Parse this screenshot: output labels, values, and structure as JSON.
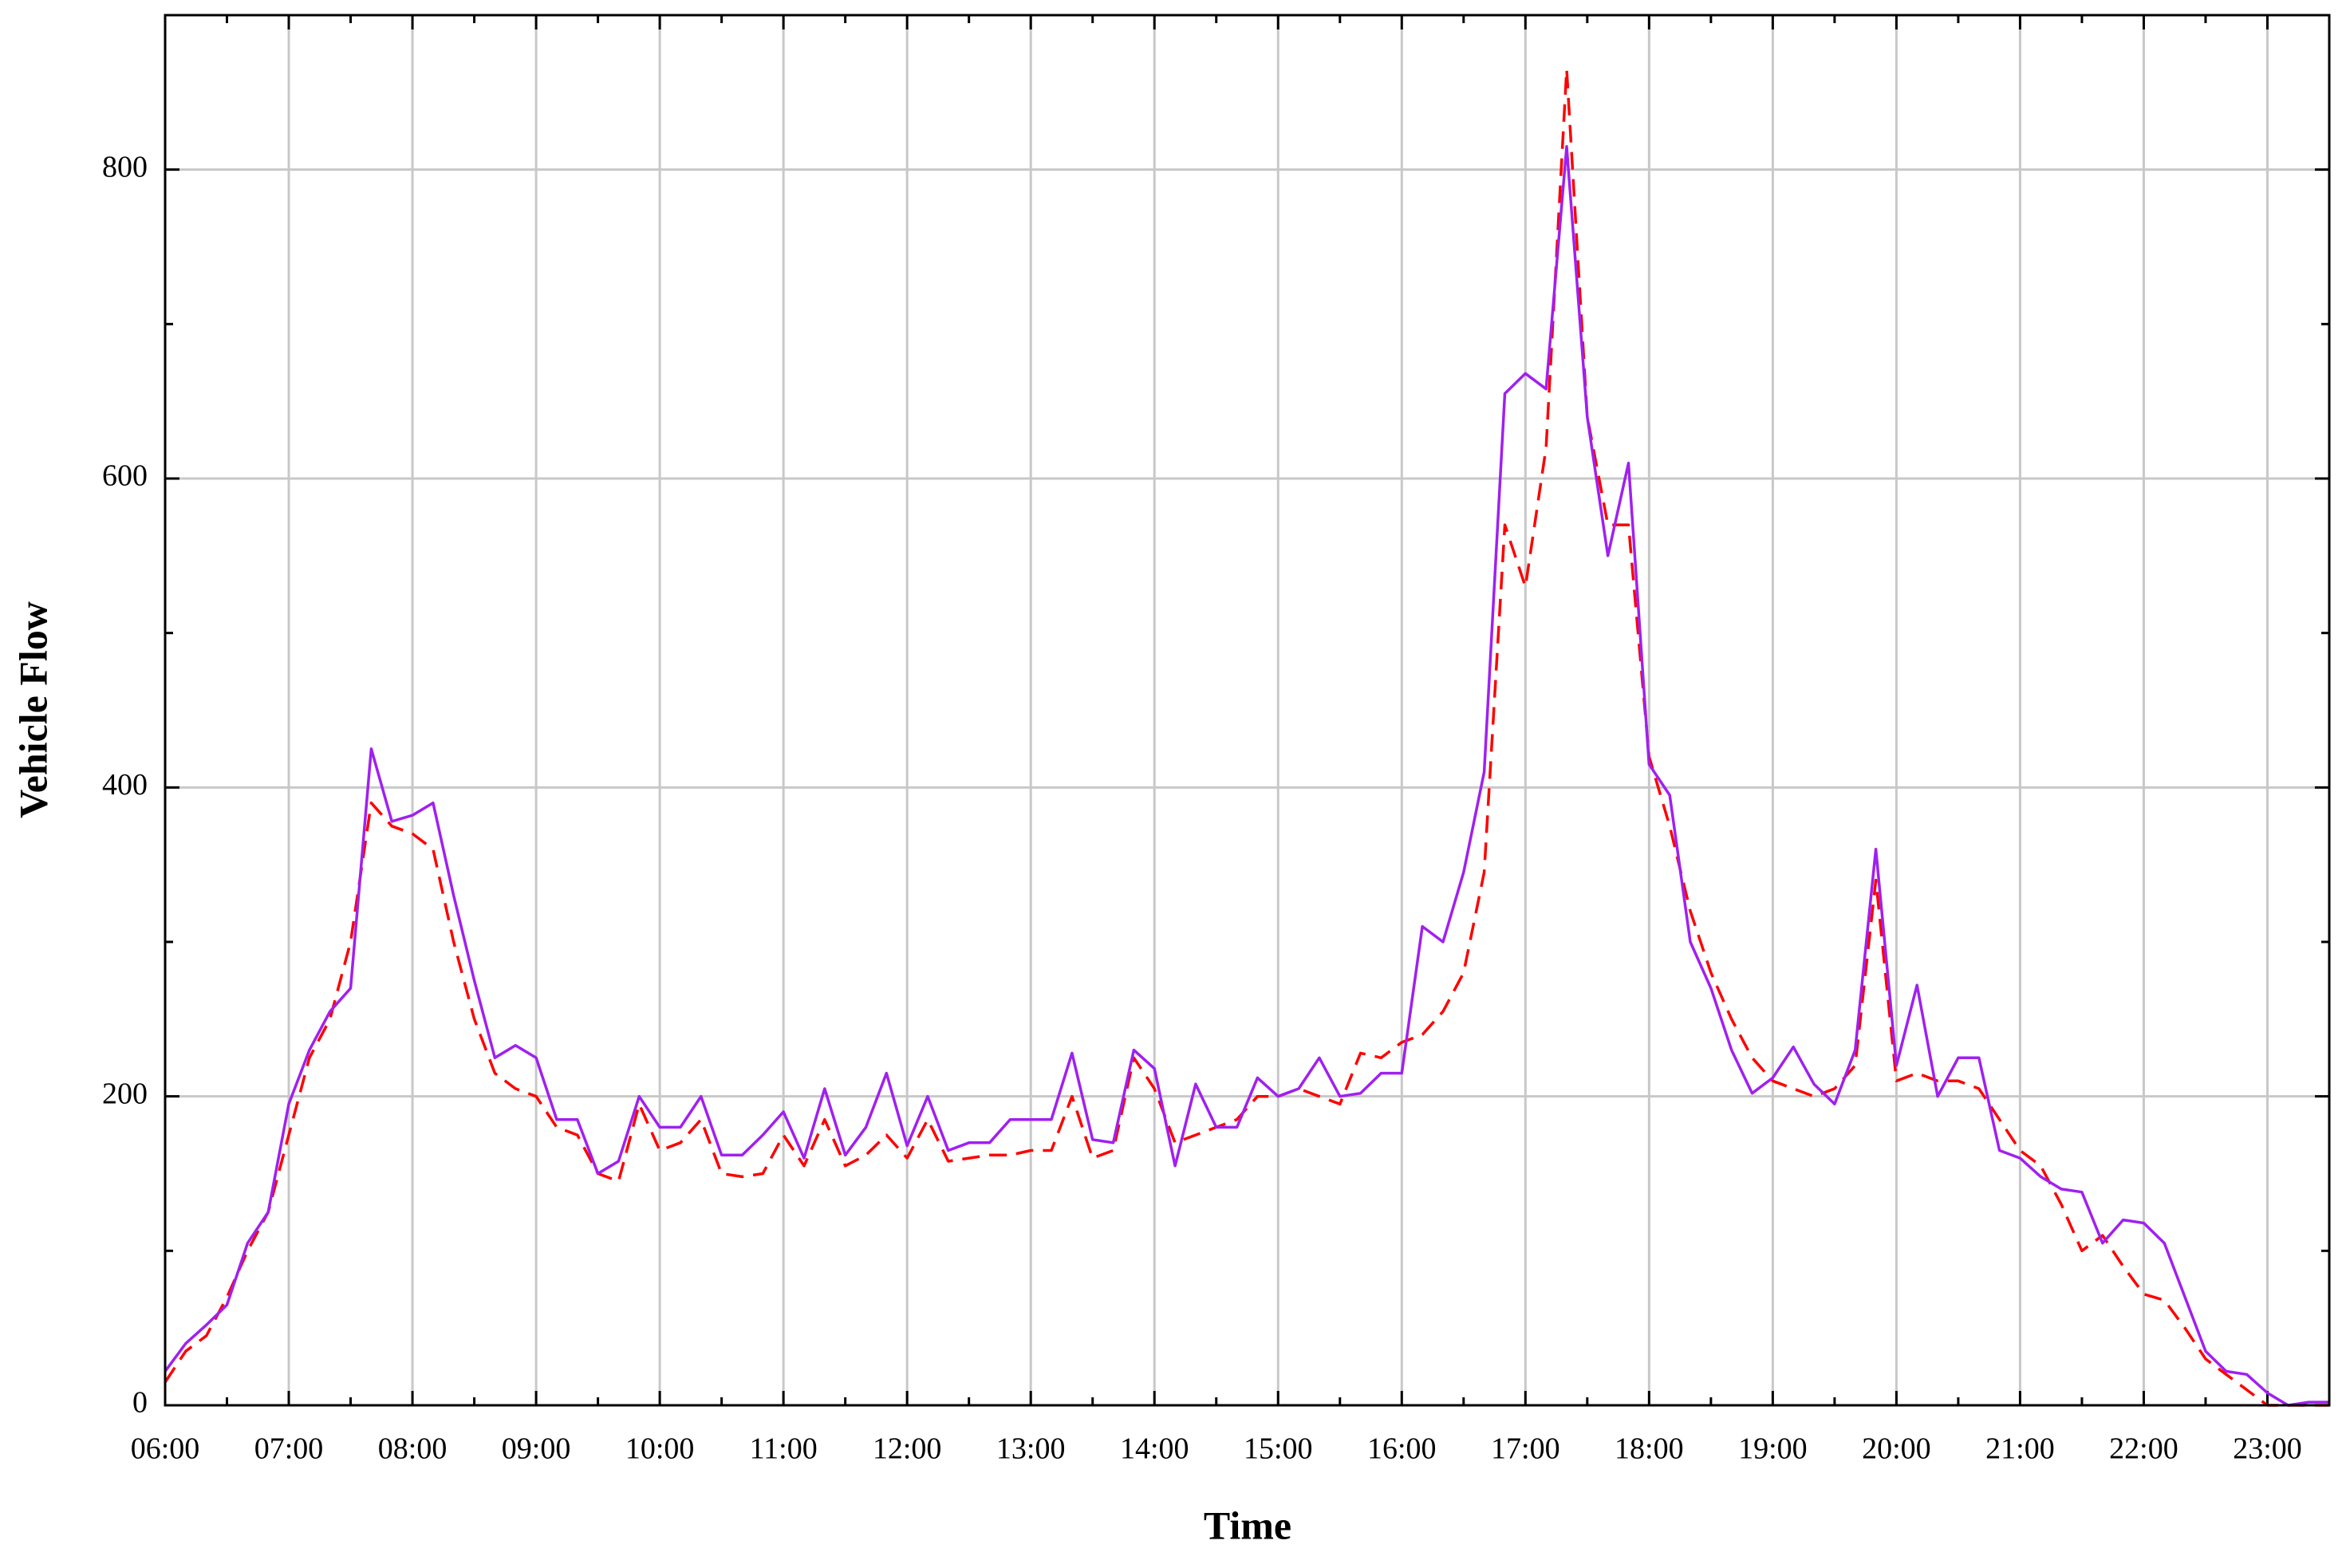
{
  "chart_data": {
    "type": "line",
    "x_label": "Time",
    "y_label": "Vehicle Flow",
    "x": [
      "06:00",
      "06:10",
      "06:20",
      "06:30",
      "06:40",
      "06:50",
      "07:00",
      "07:10",
      "07:20",
      "07:30",
      "07:40",
      "07:50",
      "08:00",
      "08:10",
      "08:20",
      "08:30",
      "08:40",
      "08:50",
      "09:00",
      "09:10",
      "09:20",
      "09:30",
      "09:40",
      "09:50",
      "10:00",
      "10:10",
      "10:20",
      "10:30",
      "10:40",
      "10:50",
      "11:00",
      "11:10",
      "11:20",
      "11:30",
      "11:40",
      "11:50",
      "12:00",
      "12:10",
      "12:20",
      "12:30",
      "12:40",
      "12:50",
      "13:00",
      "13:10",
      "13:20",
      "13:30",
      "13:40",
      "13:50",
      "14:00",
      "14:10",
      "14:20",
      "14:30",
      "14:40",
      "14:50",
      "15:00",
      "15:10",
      "15:20",
      "15:30",
      "15:40",
      "15:50",
      "16:00",
      "16:10",
      "16:20",
      "16:30",
      "16:40",
      "16:50",
      "17:00",
      "17:10",
      "17:20",
      "17:30",
      "17:40",
      "17:50",
      "18:00",
      "18:10",
      "18:20",
      "18:30",
      "18:40",
      "18:50",
      "19:00",
      "19:10",
      "19:20",
      "19:30",
      "19:40",
      "19:50",
      "20:00",
      "20:10",
      "20:20",
      "20:30",
      "20:40",
      "20:50",
      "21:00",
      "21:10",
      "21:20",
      "21:30",
      "21:40",
      "21:50",
      "22:00",
      "22:10",
      "22:20",
      "22:30",
      "22:40",
      "22:50",
      "23:00",
      "23:10",
      "23:20",
      "23:30"
    ],
    "series": [
      {
        "color": "#a020f0",
        "linestyle": "solid",
        "values": [
          22,
          40,
          52,
          65,
          105,
          125,
          195,
          230,
          255,
          270,
          425,
          378,
          382,
          390,
          330,
          275,
          225,
          233,
          225,
          185,
          185,
          150,
          158,
          200,
          180,
          180,
          200,
          162,
          162,
          175,
          190,
          160,
          205,
          162,
          180,
          215,
          168,
          200,
          165,
          170,
          170,
          185,
          185,
          185,
          228,
          172,
          170,
          230,
          218,
          155,
          208,
          180,
          180,
          212,
          200,
          205,
          225,
          200,
          202,
          215,
          215,
          310,
          300,
          345,
          410,
          655,
          668,
          658,
          815,
          640,
          550,
          610,
          415,
          395,
          300,
          270,
          230,
          202,
          212,
          232,
          208,
          195,
          230,
          360,
          220,
          272,
          200,
          225,
          225,
          165,
          160,
          148,
          140,
          138,
          105,
          120,
          118,
          105,
          70,
          35,
          22,
          20,
          8,
          0,
          2,
          2
        ]
      },
      {
        "color": "#ff0000",
        "linestyle": "dashed",
        "values": [
          15,
          35,
          45,
          70,
          100,
          125,
          175,
          225,
          250,
          300,
          390,
          375,
          370,
          360,
          300,
          250,
          215,
          205,
          200,
          180,
          175,
          150,
          145,
          195,
          165,
          170,
          185,
          150,
          148,
          150,
          175,
          155,
          185,
          155,
          162,
          175,
          160,
          185,
          158,
          160,
          162,
          162,
          165,
          165,
          200,
          160,
          165,
          225,
          205,
          170,
          175,
          180,
          185,
          200,
          200,
          205,
          200,
          195,
          228,
          225,
          235,
          240,
          255,
          280,
          345,
          570,
          530,
          620,
          865,
          640,
          570,
          570,
          420,
          375,
          320,
          280,
          250,
          225,
          210,
          205,
          200,
          205,
          220,
          340,
          210,
          215,
          210,
          210,
          205,
          185,
          165,
          155,
          130,
          100,
          110,
          90,
          72,
          68,
          50,
          30,
          20,
          10,
          0,
          0,
          0,
          0
        ]
      }
    ],
    "xlim": [
      "06:00",
      "23:30"
    ],
    "xticks": [
      "06:00",
      "07:00",
      "08:00",
      "09:00",
      "10:00",
      "11:00",
      "12:00",
      "13:00",
      "14:00",
      "15:00",
      "16:00",
      "17:00",
      "18:00",
      "19:00",
      "20:00",
      "21:00",
      "22:00",
      "23:00"
    ],
    "xminorticks": [
      "06:30",
      "07:30",
      "08:30",
      "09:30",
      "10:30",
      "11:30",
      "12:30",
      "13:30",
      "14:30",
      "15:30",
      "16:30",
      "17:30",
      "18:30",
      "19:30",
      "20:30",
      "21:30",
      "22:30"
    ],
    "ylim": [
      0,
      900
    ],
    "yticks": [
      0,
      200,
      400,
      600,
      800
    ],
    "yminorticks": [
      100,
      300,
      500,
      700
    ],
    "grid": true
  }
}
